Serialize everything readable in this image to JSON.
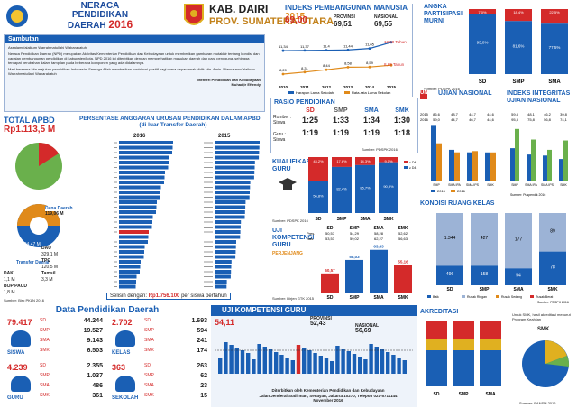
{
  "header": {
    "title_line1": "NERACA",
    "title_line2": "PENDIDIKAN",
    "title_line3": "DAERAH",
    "year": "2016",
    "kab": "KAB. DAIRI",
    "prov": "PROV. SUMATERA UTARA"
  },
  "sambutan": {
    "heading": "Sambutan",
    "greeting": "Assalamu'alaikum Warrahmatullahi Wabarakatuh",
    "body1": "Neraca Pendidikan Daerah (NPD) merupakan Aktivitas Kementerian Pendidikan dan Kebudayaan untuk memberikan gambaran mutakhir tentang kondisi dan capaian pembangunan pendidikan di kabupaten/kota. NPD 2016 ini diterbitkan dengan memperhatikan masukan daerah dan para pengguna, sehingga terdapat perubahan dalam tampilan pada beberapa komponen yang ada didalamnya.",
    "body2": "Mari bersama kita majukan pendidikan Indonesia. Semoga Allah memberikan kontribusi positif bagi masa depan anak didik kita. Amin. Wassalamu'alaikum Warrahmatullahi Wabarakatuh",
    "signer": "Menteri Pendidikan dan Kebudayaan",
    "signer_name": "Muhadjir Effendy"
  },
  "ipm": {
    "title": "INDEKS PEMBANGUNAN MANUSIA",
    "year": "2015",
    "kab_value": "69,00",
    "prov_label": "PROVINSI",
    "prov_value": "69,51",
    "nas_label": "NASIONAL",
    "nas_value": "69,55",
    "lama_sekolah": "12,50 Tahun",
    "rata_sekolah": "8,69 Tahun",
    "legend_h": "Harapan Lama Sekolah",
    "legend_r": "Rata-rata Lama Sekolah",
    "source": "Sumber: BPS 2015",
    "years": [
      "2010",
      "2011",
      "2012",
      "2013",
      "2014",
      "2015"
    ],
    "hls": [
      "11,34",
      "11,37",
      "11,4",
      "11,44",
      "11,65",
      "12,50"
    ],
    "rls": [
      "8,20",
      "8,31",
      "8,44",
      "8,58",
      "8,59",
      "8,69"
    ]
  },
  "apm": {
    "title_line1": "ANGKA",
    "title_line2": "PARTISIPASI",
    "title_line3": "MURNI",
    "source": "Sumber: PDSPK 2016",
    "cats": [
      "SD",
      "SMP",
      "SMA"
    ],
    "values": [
      "93,0%",
      "81,6%",
      "77,5%"
    ],
    "top": [
      "7,0%",
      "18,4%",
      "22,5%"
    ]
  },
  "apbd": {
    "title": "TOTAL APBD",
    "total": "Rp1.113,5 M",
    "dana_daerah": "Dana Daerah",
    "dana_daerah_value": "119,06 M",
    "transfer_daerah": "Transfer Daerah",
    "transfer_value": "994,47 M",
    "dau_label": "DAU",
    "dau_value": "329,1 M",
    "tpg_label": "TPG",
    "tpg_value": "120,5 M",
    "dak_label": "DAK",
    "dak_value": "1,1 M",
    "bop_label": "BOP PAUD",
    "bop_value": "1,8 M",
    "tamsil_label": "Tamsil",
    "tamsil_value": "3,3 M",
    "source": "Sumber: Biro PKLN 2016"
  },
  "alokasi": {
    "title": "PERSENTASE ANGGARAN URUSAN PENDIDIKAN DALAM APBD",
    "subtitle": "(di luar Transfer Daerah)",
    "y1": "2016",
    "y2": "2015",
    "footer_label": "Selisih dengan:",
    "footer_value": "Rp1.756.100",
    "footer_unit": "per siswa pertahun"
  },
  "rasio": {
    "title": "RASIO PENDIDIKAN",
    "rombel_label": "Rombel : Siswa",
    "guru_label": "Guru : Siswa",
    "cols": [
      "SD",
      "SMP",
      "SMA",
      "SMK"
    ],
    "rombel": [
      "1:25",
      "1:33",
      "1:34",
      "1:30"
    ],
    "guru": [
      "1:19",
      "1:19",
      "1:19",
      "1:18"
    ],
    "source": "Sumber: PDSPK 2016"
  },
  "ujian": {
    "title": "UJIAN NASIONAL",
    "title2": "INDEKS INTEGRITAS UJIAN NASIONAL",
    "cats": [
      "SMP",
      "SMA IPA",
      "SMA IPS",
      "SMK"
    ],
    "un_2015": [
      "86,6",
      "48,7",
      "44,7",
      "44,6"
    ],
    "un_2016": [
      "59,0",
      "44,7",
      "46,7",
      "44,6"
    ],
    "iiun_2015": [
      "59,8",
      "48,1",
      "46,2",
      "39,8"
    ],
    "iiun_2016": [
      "95,3",
      "75,8",
      "56,8",
      "74,1"
    ],
    "legend_2015": "2015",
    "legend_2016": "2016",
    "source": "Sumber: Puspendik 2016"
  },
  "kualifikasi": {
    "title_line1": "KUALIFIKASI",
    "title_line2": "GURU",
    "cats": [
      "SD",
      "SMP",
      "SMA",
      "SMK"
    ],
    "layak": [
      "56,8%",
      "82,4%",
      "85,7%",
      "90,9%"
    ],
    "belum": [
      "43,2%",
      "17,6%",
      "14,3%",
      "9,1%"
    ],
    "legend_layak": "< D4",
    "legend_belum": "≥ D4",
    "source": "Sumber: PDSPK 2016"
  },
  "ruang": {
    "title": "KONDISI RUANG KELAS",
    "cats": [
      "SD",
      "SMP",
      "SMA",
      "SMK"
    ],
    "baik": [
      "496",
      "158",
      "54",
      "78"
    ],
    "rusak_ringan": [
      "1.344",
      "427",
      "177",
      "89"
    ],
    "rusak_sedang": [
      "",
      "",
      "",
      ""
    ],
    "legend": [
      "Baik",
      "Rusak Ringan",
      "Rusak Sedang",
      "Rusak Berat"
    ],
    "source": "Sumber: PDSPK 2016"
  },
  "ukg": {
    "title_line1": "UJI",
    "title_line2": "KOMPETENSI",
    "title_line3": "GURU",
    "sub": "PERJENJANG",
    "cats": [
      "SD",
      "SMP",
      "SMA",
      "SMK"
    ],
    "values": [
      "50,57",
      "58,03",
      "63,63",
      "55,16"
    ],
    "row1_label": "Pres.",
    "row1": [
      "50,57",
      "54,29",
      "58,28",
      "52,62"
    ],
    "row2_label": "Nas.",
    "row2": [
      "53,53",
      "59,02",
      "62,27",
      "56,63"
    ],
    "source": "Sumber: Dirjen GTK 2015"
  },
  "ukg_kab": {
    "title": "UJI KOMPETENSI GURU",
    "kab_value": "54,11",
    "prov_label": "PROVINSI",
    "prov_value": "52,43",
    "nas_label": "NASIONAL",
    "nas_value": "56,69",
    "source": "Sumber: Dirjen GTK 2015"
  },
  "data_pendidikan": {
    "title": "Data Pendidikan Daerah",
    "siswa_label": "SISWA",
    "siswa_total": "79.417",
    "siswa": {
      "sd": "44.244",
      "smp": "19.527",
      "sma": "9.143",
      "smk": "6.503"
    },
    "guru_label": "GURU",
    "guru_total": "4.239",
    "guru": {
      "sd": "2.355",
      "smp": "1.037",
      "sma": "486",
      "smk": "361"
    },
    "kelas_label": "KELAS",
    "kelas_total": "2.702",
    "kelas": {
      "sd": "1.693",
      "smp": "594",
      "sma": "241",
      "smk": "174"
    },
    "sekolah_label": "SEKOLAH",
    "sekolah_total": "363",
    "sekolah": {
      "sd": "263",
      "smp": "62",
      "sma": "23",
      "smk": "15"
    },
    "sd": "SD",
    "smp": "SMP",
    "sma": "SMA",
    "smk": "SMK"
  },
  "akreditasi": {
    "title": "AKREDITASI",
    "note": "Untuk SMK, hasil akreditasi menurut Program Keahlian",
    "cats": [
      "SD",
      "SMP",
      "SMA"
    ],
    "legend_smk": "SMK",
    "source": "Sumber: BANSM 2016"
  },
  "footer": {
    "line1": "Diterbitkan oleh Kementerian Pendidikan dan Kebudayaan",
    "line2": "Jalan Jenderal Sudirman, Senayan, Jakarta 10270, Telepon 021-5711144",
    "line3": "November 2016"
  },
  "colors": {
    "blue": "#1a5fb4",
    "red": "#d42a2a",
    "orange": "#e08a1a",
    "green": "#6ab04c"
  }
}
